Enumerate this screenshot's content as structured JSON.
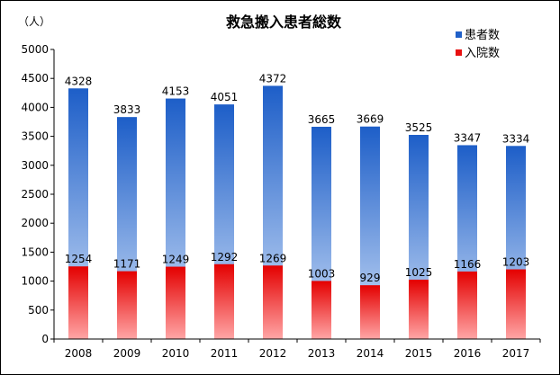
{
  "chart_data": {
    "type": "bar",
    "title": "救急搬入患者総数",
    "ylabel": "（人）",
    "xlabel": "",
    "ylim": [
      0,
      5000
    ],
    "ytick_step": 500,
    "grid": false,
    "legend_position": "top-right",
    "overlay": true,
    "categories": [
      "2008",
      "2009",
      "2010",
      "2011",
      "2012",
      "2013",
      "2014",
      "2015",
      "2016",
      "2017"
    ],
    "series": [
      {
        "name": "患者数",
        "color": "#2060c8",
        "values": [
          4328,
          3833,
          4153,
          4051,
          4372,
          3665,
          3669,
          3525,
          3347,
          3334
        ]
      },
      {
        "name": "入院数",
        "color": "#e81010",
        "values": [
          1254,
          1171,
          1249,
          1292,
          1269,
          1003,
          929,
          1025,
          1166,
          1203
        ]
      }
    ]
  }
}
